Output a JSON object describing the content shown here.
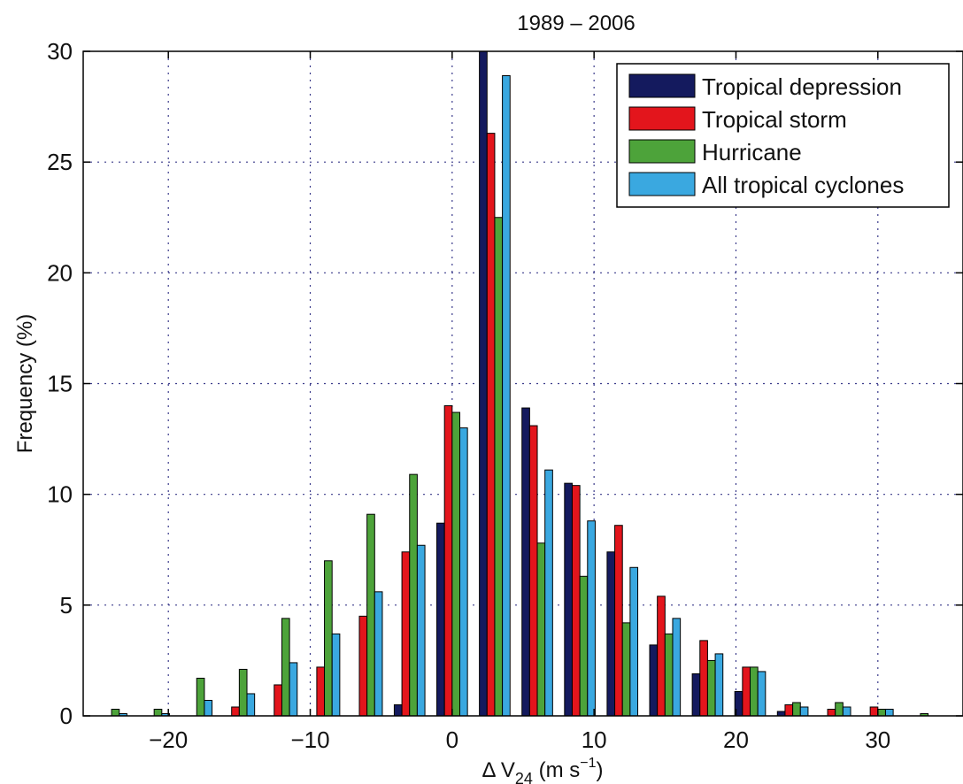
{
  "chart_data": {
    "type": "bar",
    "title": "1989 – 2006",
    "xlabel": {
      "main": "Δ V",
      "sub": "24",
      "units_pre": "(m s",
      "sup": "−1",
      "units_post": ")"
    },
    "ylabel": "Frequency (%)",
    "xlim": [
      -26,
      36
    ],
    "ylim": [
      0,
      30
    ],
    "xticks": [
      -20,
      -10,
      0,
      10,
      20,
      30
    ],
    "xtick_labels": [
      "−20",
      "−10",
      "0",
      "10",
      "20",
      "30"
    ],
    "yticks": [
      0,
      5,
      10,
      15,
      20,
      25,
      30
    ],
    "grid": true,
    "legend_position": "top-right",
    "bin_centers": [
      -24,
      -21,
      -18,
      -15,
      -12,
      -9,
      -6,
      -3,
      0,
      3,
      6,
      9,
      12,
      15,
      18,
      21,
      24,
      27,
      30,
      33,
      36
    ],
    "series": [
      {
        "name": "Tropical depression",
        "color": "#141a5e",
        "values": [
          0,
          0,
          0,
          0,
          0,
          0,
          0,
          0.5,
          8.7,
          30,
          13.9,
          10.5,
          7.4,
          3.2,
          1.9,
          1.1,
          0.2,
          0,
          0,
          0,
          0
        ]
      },
      {
        "name": "Tropical storm",
        "color": "#e3151c",
        "values": [
          0,
          0,
          0,
          0.4,
          1.4,
          2.2,
          4.5,
          7.4,
          14.0,
          26.3,
          13.1,
          10.4,
          8.6,
          5.4,
          3.4,
          2.2,
          0.5,
          0.3,
          0.4,
          0,
          0
        ]
      },
      {
        "name": "Hurricane",
        "color": "#4da33a",
        "values": [
          0.3,
          0.3,
          1.7,
          2.1,
          4.4,
          7.0,
          9.1,
          10.9,
          13.7,
          22.5,
          7.8,
          6.3,
          4.2,
          3.7,
          2.5,
          2.2,
          0.6,
          0.6,
          0.3,
          0.1,
          0.2
        ]
      },
      {
        "name": "All tropical cyclones",
        "color": "#3aa8e0",
        "values": [
          0.1,
          0.1,
          0.7,
          1.0,
          2.4,
          3.7,
          5.6,
          7.7,
          13.0,
          28.9,
          11.1,
          8.8,
          6.7,
          4.4,
          2.8,
          2.0,
          0.4,
          0.4,
          0.3,
          0,
          0
        ]
      }
    ]
  }
}
